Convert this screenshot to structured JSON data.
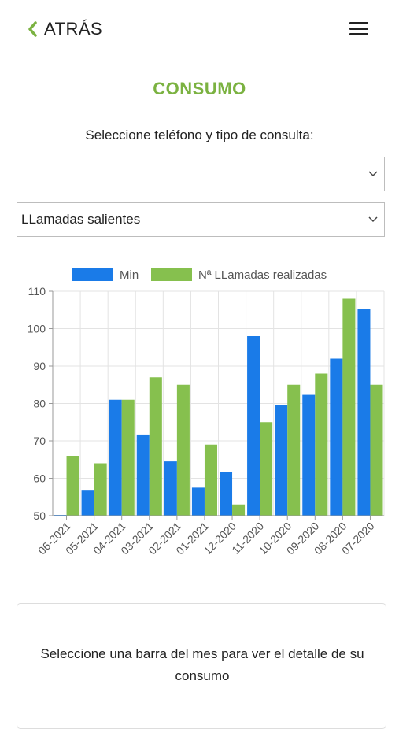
{
  "header": {
    "back_label": "ATRÁS",
    "back_icon": "chevron-left-icon",
    "menu_icon": "hamburger-menu-icon"
  },
  "page": {
    "title": "CONSUMO",
    "prompt": "Seleccione teléfono y tipo de consulta:"
  },
  "selectors": {
    "phone_value": "",
    "type_value": "LLamadas salientes"
  },
  "colors": {
    "accent": "#7bb241",
    "series_min": "#1a7be8",
    "series_calls": "#86c04e"
  },
  "chart_data": {
    "type": "bar",
    "categories": [
      "06-2021",
      "05-2021",
      "04-2021",
      "03-2021",
      "02-2021",
      "01-2021",
      "12-2020",
      "11-2020",
      "10-2020",
      "09-2020",
      "08-2020",
      "07-2020"
    ],
    "series": [
      {
        "name": "Min",
        "color": "#1a7be8",
        "values": [
          50.2,
          56.7,
          81,
          71.7,
          64.5,
          57.5,
          61.7,
          98,
          79.6,
          82.3,
          92,
          105.3
        ]
      },
      {
        "name": "Nª LLamadas realizadas",
        "color": "#86c04e",
        "values": [
          66,
          64,
          81,
          87,
          85,
          69,
          53,
          75,
          85,
          88,
          108,
          85
        ]
      }
    ],
    "ylim": [
      50,
      110
    ],
    "yticks": [
      50,
      60,
      70,
      80,
      90,
      100,
      110
    ],
    "grid": true,
    "legend": "top"
  },
  "info": {
    "text": "Seleccione una barra del mes para ver el detalle de su consumo"
  }
}
